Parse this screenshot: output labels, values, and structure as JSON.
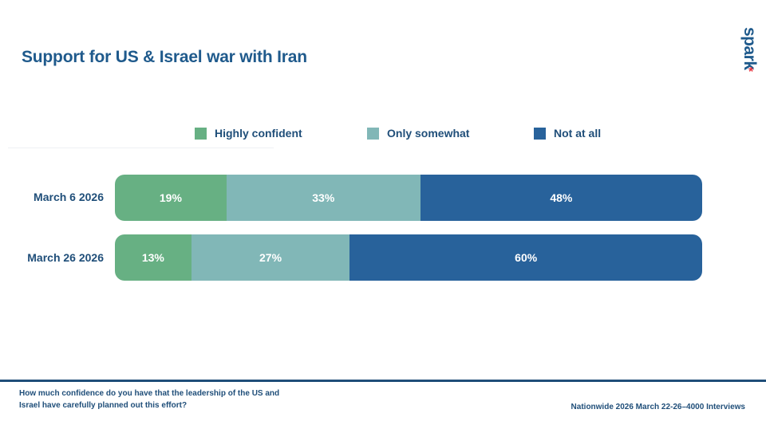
{
  "title": "Support for US & Israel war with Iran",
  "logo": {
    "text": "spark",
    "mark": "*"
  },
  "colors": {
    "highly_confident": "#67b083",
    "only_somewhat": "#81b7b7",
    "not_at_all": "#28629b",
    "text": "#1f4e79"
  },
  "chart_data": {
    "type": "bar",
    "orientation": "horizontal",
    "stacked": true,
    "normalized": true,
    "categories": [
      "March 6 2026",
      "March 26 2026"
    ],
    "series": [
      {
        "name": "Highly confident",
        "values": [
          19,
          13
        ],
        "labels": [
          "19%",
          "13%"
        ]
      },
      {
        "name": "Only somewhat",
        "values": [
          33,
          27
        ],
        "labels": [
          "33%",
          "27%"
        ]
      },
      {
        "name": "Not at all",
        "values": [
          48,
          60
        ],
        "labels": [
          "48%",
          "60%"
        ]
      }
    ],
    "legend_position": "top"
  },
  "footer": {
    "question": "How much confidence do you have that the leadership of the US and Israel have carefully planned out this effort?",
    "source": "Nationwide 2026 March 22-26–4000 Interviews"
  }
}
